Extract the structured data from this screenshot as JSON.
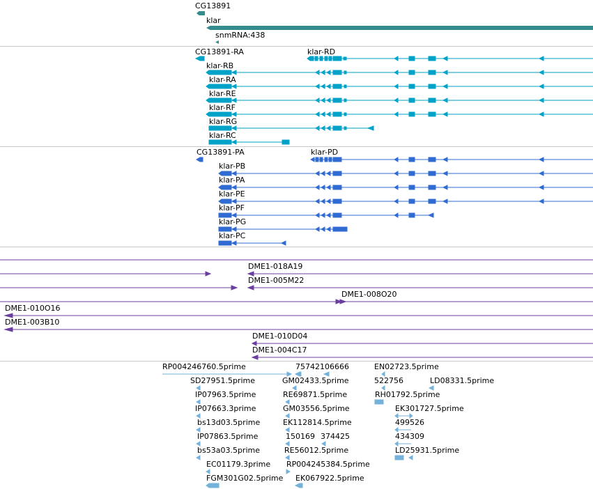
{
  "colors": {
    "gene": "#348c8c",
    "transcript": "#00a2c8",
    "protein": "#2f6bd0",
    "bac": "#6a3fa0",
    "est": "#74b2da",
    "divider": "#c8c8c8"
  },
  "genes": {
    "cg13891": "CG13891",
    "klar": "klar",
    "snmrna": "snmRNA:438"
  },
  "transcripts": {
    "cg13891_ra": "CG13891-RA",
    "klar_rd": "klar-RD",
    "klar_rb": "klar-RB",
    "klar_ra": "klar-RA",
    "klar_re": "klar-RE",
    "klar_rf": "klar-RF",
    "klar_rg": "klar-RG",
    "klar_rc": "klar-RC"
  },
  "proteins": {
    "cg13891_pa": "CG13891-PA",
    "klar_pd": "klar-PD",
    "klar_pb": "klar-PB",
    "klar_pa": "klar-PA",
    "klar_pe": "klar-PE",
    "klar_pf": "klar-PF",
    "klar_pg": "klar-PG",
    "klar_pc": "klar-PC"
  },
  "bacs": {
    "b1": "DME1-018A19",
    "b2": "DME1-005M22",
    "b3": "DME1-008O20",
    "b4": "DME1-010O16",
    "b5": "DME1-003B10",
    "b6": "DME1-010D04",
    "b7": "DME1-004C17"
  },
  "ests": {
    "e1": "RP004246760.5prime",
    "e2": "75742106666",
    "e3": "EN02723.5prime",
    "e4": "SD27951.5prime",
    "e5": "GM02433.5prime",
    "e6": "522756",
    "e7": "LD08331.5prime",
    "e8": "IP07963.5prime",
    "e9": "RE69871.5prime",
    "e10": "RH01792.5prime",
    "e11": "IP07663.3prime",
    "e12": "GM03556.5prime",
    "e13": "EK301727.5prime",
    "e14": "bs13d03.5prime",
    "e15": "EK112814.5prime",
    "e16": "499526",
    "e17": "IP07863.5prime",
    "e18": "150169",
    "e19": "374425",
    "e20": "434309",
    "e21": "bs53a03.5prime",
    "e22": "RE56012.5prime",
    "e23": "LD25931.5prime",
    "e24": "EC01179.3prime",
    "e25": "RP004245384.5prime",
    "e26": "FGM301G02.5prime",
    "e27": "EK067922.5prime"
  }
}
